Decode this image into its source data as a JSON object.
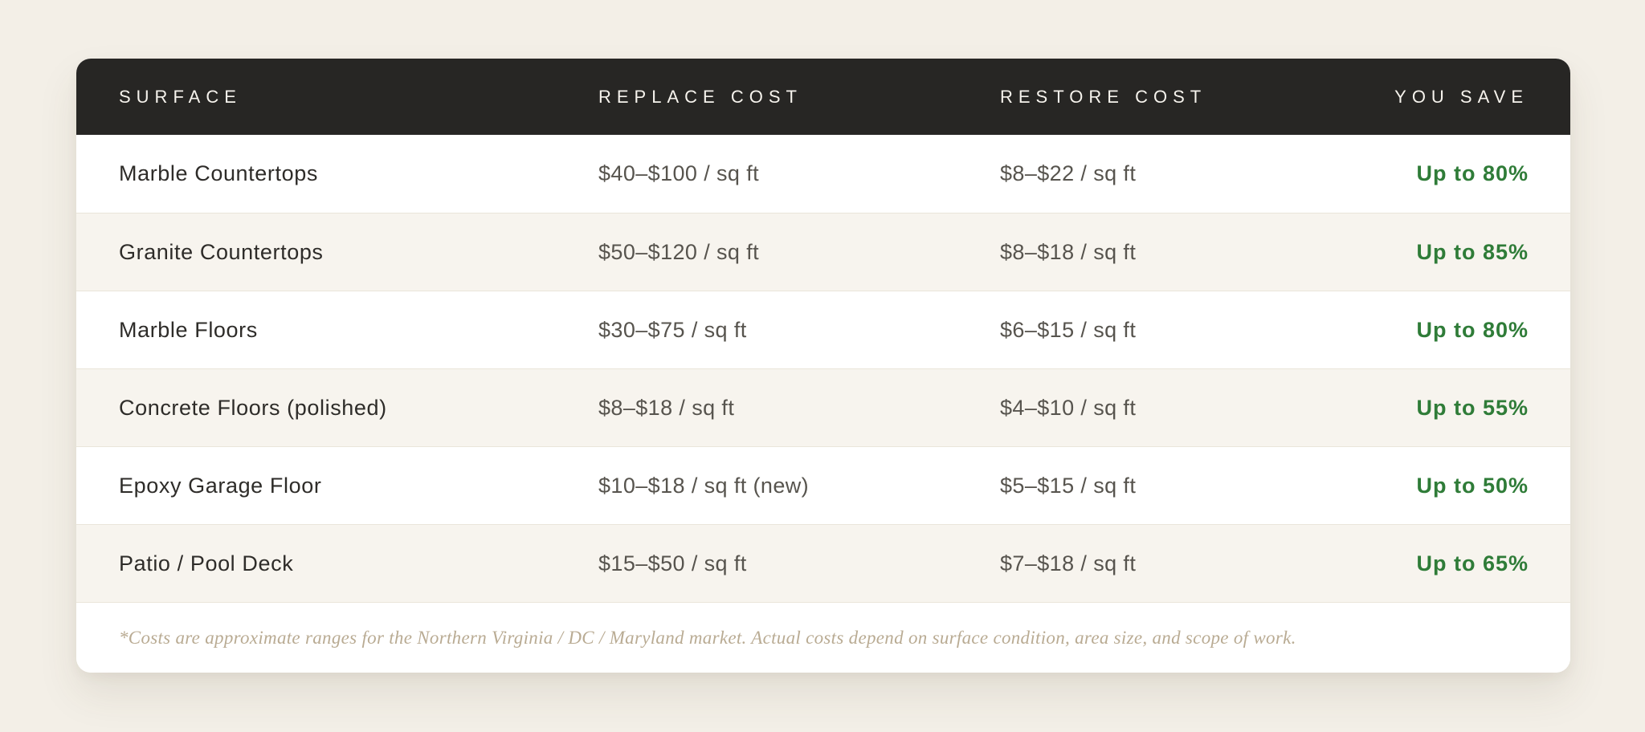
{
  "chart_data": {
    "type": "table",
    "columns": [
      "SURFACE",
      "REPLACE COST",
      "RESTORE COST",
      "YOU SAVE"
    ],
    "rows": [
      [
        "Marble Countertops",
        "$40–$100 / sq ft",
        "$8–$22 / sq ft",
        "Up to 80%"
      ],
      [
        "Granite Countertops",
        "$50–$120 / sq ft",
        "$8–$18 / sq ft",
        "Up to 85%"
      ],
      [
        "Marble Floors",
        "$30–$75 / sq ft",
        "$6–$15 / sq ft",
        "Up to 80%"
      ],
      [
        "Concrete Floors (polished)",
        "$8–$18 / sq ft",
        "$4–$10 / sq ft",
        "Up to 55%"
      ],
      [
        "Epoxy Garage Floor",
        "$10–$18 / sq ft (new)",
        "$5–$15 / sq ft",
        "Up to 50%"
      ],
      [
        "Patio / Pool Deck",
        "$15–$50 / sq ft",
        "$7–$18 / sq ft",
        "Up to 65%"
      ]
    ],
    "footnote": "*Costs are approximate ranges for the Northern Virginia / DC / Maryland market. Actual costs depend on surface condition, area size, and scope of work."
  },
  "table": {
    "headers": [
      "SURFACE",
      "REPLACE COST",
      "RESTORE COST",
      "YOU SAVE"
    ],
    "rows": [
      {
        "surface": "Marble Countertops",
        "replace": "$40–$100 / sq ft",
        "restore": "$8–$22 / sq ft",
        "save": "Up to 80%"
      },
      {
        "surface": "Granite Countertops",
        "replace": "$50–$120 / sq ft",
        "restore": "$8–$18 / sq ft",
        "save": "Up to 85%"
      },
      {
        "surface": "Marble Floors",
        "replace": "$30–$75 / sq ft",
        "restore": "$6–$15 / sq ft",
        "save": "Up to 80%"
      },
      {
        "surface": "Concrete Floors (polished)",
        "replace": "$8–$18 / sq ft",
        "restore": "$4–$10 / sq ft",
        "save": "Up to 55%"
      },
      {
        "surface": "Epoxy Garage Floor",
        "replace": "$10–$18 / sq ft (new)",
        "restore": "$5–$15 / sq ft",
        "save": "Up to 50%"
      },
      {
        "surface": "Patio / Pool Deck",
        "replace": "$15–$50 / sq ft",
        "restore": "$7–$18 / sq ft",
        "save": "Up to 65%"
      }
    ],
    "footnote": "*Costs are approximate ranges for the Northern Virginia / DC / Maryland market. Actual costs depend on surface condition, area size, and scope of work."
  },
  "colors": {
    "page_bg": "#f3efe7",
    "card_bg": "#ffffff",
    "header_bg": "#272624",
    "header_text": "#f6f3ed",
    "surface_text": "#2e2c29",
    "cost_text": "#57544e",
    "save_green": "#2f7c38",
    "row_alt_bg": "#f7f4ee",
    "divider": "#eae5da",
    "footnote_text": "#b9ab93"
  }
}
